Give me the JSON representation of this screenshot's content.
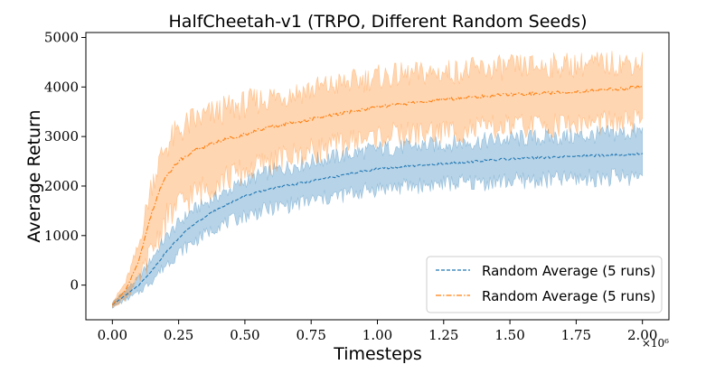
{
  "chart_data": {
    "type": "line",
    "title": "HalfCheetah-v1 (TRPO, Different Random Seeds)",
    "xlabel": "Timesteps",
    "ylabel": "Average Return",
    "x_multiplier_label": "×10⁶",
    "xlim": [
      -0.1,
      2.1
    ],
    "ylim": [
      -700,
      5100
    ],
    "xticks": [
      0.0,
      0.25,
      0.5,
      0.75,
      1.0,
      1.25,
      1.5,
      1.75,
      2.0
    ],
    "xtick_labels": [
      "0.00",
      "0.25",
      "0.50",
      "0.75",
      "1.00",
      "1.25",
      "1.50",
      "1.75",
      "2.00"
    ],
    "yticks": [
      0,
      1000,
      2000,
      3000,
      4000,
      5000
    ],
    "ytick_labels": [
      "0",
      "1000",
      "2000",
      "3000",
      "4000",
      "5000"
    ],
    "legend_position": "lower-right",
    "series": [
      {
        "name": "Random Average (5 runs)",
        "color": "#1f77b4",
        "linestyle": "dashed",
        "x": [
          0.0,
          0.05,
          0.1,
          0.15,
          0.2,
          0.25,
          0.3,
          0.4,
          0.5,
          0.6,
          0.75,
          0.9,
          1.0,
          1.25,
          1.5,
          1.75,
          2.0
        ],
        "mean": [
          -400,
          -200,
          0,
          300,
          650,
          950,
          1200,
          1550,
          1800,
          1950,
          2100,
          2250,
          2350,
          2450,
          2550,
          2600,
          2650
        ],
        "lower": [
          -450,
          -300,
          -150,
          100,
          400,
          650,
          850,
          1200,
          1400,
          1550,
          1700,
          1850,
          1950,
          2050,
          2100,
          2150,
          2200
        ],
        "upper": [
          -350,
          -100,
          150,
          550,
          950,
          1250,
          1500,
          1800,
          2100,
          2300,
          2500,
          2650,
          2750,
          2850,
          2950,
          3000,
          3100
        ]
      },
      {
        "name": "Random Average (5 runs)",
        "color": "#ff7f0e",
        "linestyle": "dashdot",
        "x": [
          0.0,
          0.05,
          0.1,
          0.15,
          0.2,
          0.25,
          0.3,
          0.4,
          0.5,
          0.6,
          0.75,
          0.9,
          1.0,
          1.25,
          1.5,
          1.75,
          2.0
        ],
        "mean": [
          -400,
          -100,
          500,
          1500,
          2200,
          2500,
          2700,
          2900,
          3050,
          3200,
          3350,
          3500,
          3600,
          3750,
          3850,
          3900,
          4000
        ],
        "lower": [
          -450,
          -250,
          100,
          700,
          1300,
          1600,
          1800,
          2100,
          2300,
          2500,
          2700,
          2900,
          3000,
          3100,
          3200,
          3250,
          3300
        ],
        "upper": [
          -350,
          50,
          800,
          2100,
          2800,
          3100,
          3300,
          3500,
          3650,
          3800,
          3950,
          4100,
          4200,
          4300,
          4400,
          4450,
          4500
        ]
      }
    ]
  }
}
